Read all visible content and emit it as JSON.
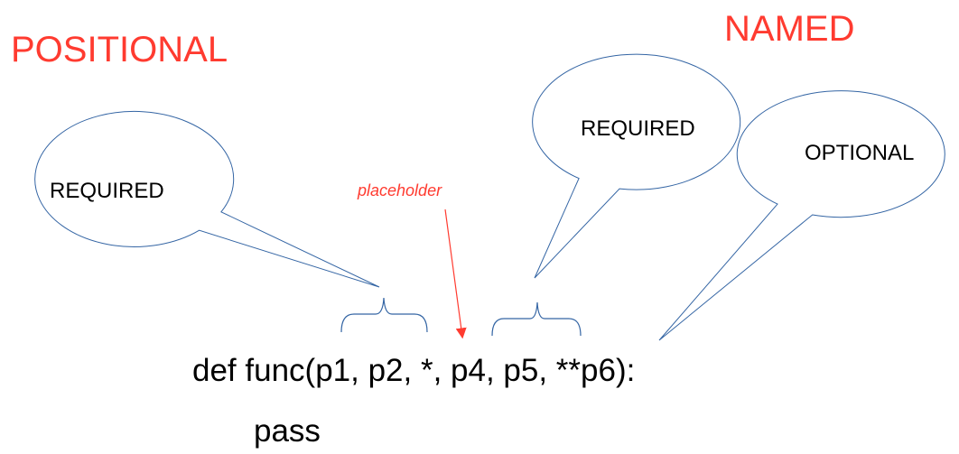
{
  "headings": {
    "positional": "POSITIONAL",
    "named": "NAMED"
  },
  "bubbles": {
    "positional_required": "REQUIRED",
    "named_required": "REQUIRED",
    "named_optional": "OPTIONAL"
  },
  "annotation": {
    "placeholder": "placeholder"
  },
  "code": {
    "signature": "def func(p1, p2, *, p4, p5, **p6):",
    "body": "pass"
  },
  "colors": {
    "heading": "#ff3b30",
    "outline": "#3465a4",
    "text": "#000000",
    "arrow": "#ff3b30"
  }
}
